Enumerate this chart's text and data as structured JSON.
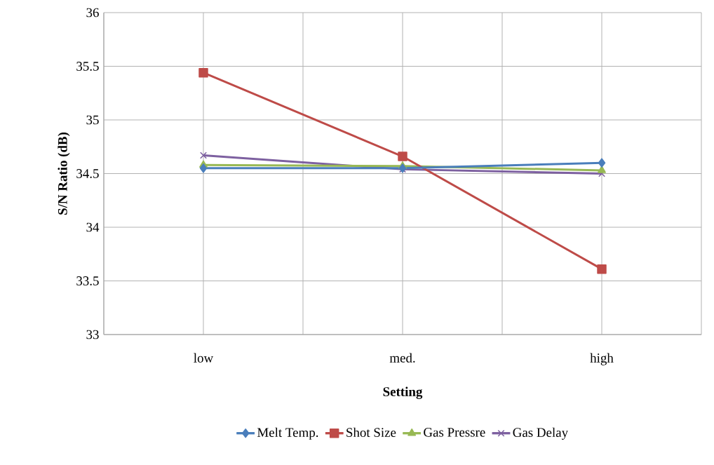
{
  "chart_data": {
    "type": "line",
    "xlabel": "Setting",
    "ylabel": "S/N Ratio (dB)",
    "categories": [
      "low",
      "med.",
      "high"
    ],
    "series": [
      {
        "name": "Melt Temp.",
        "color": "#4a7ebb",
        "marker": "diamond",
        "values": [
          34.55,
          34.55,
          34.6
        ]
      },
      {
        "name": "Shot Size",
        "color": "#be4b48",
        "marker": "square",
        "values": [
          35.44,
          34.66,
          33.61
        ]
      },
      {
        "name": "Gas Pressre",
        "color": "#98b954",
        "marker": "triangle",
        "values": [
          34.58,
          34.57,
          34.53
        ]
      },
      {
        "name": "Gas Delay",
        "color": "#7d60a0",
        "marker": "cross",
        "values": [
          34.67,
          34.54,
          34.5
        ]
      }
    ],
    "ylim": [
      33,
      36
    ],
    "yticks": [
      33,
      33.5,
      34,
      34.5,
      35,
      35.5,
      36
    ],
    "grid": true,
    "legend": "bottom",
    "line_style": "solid"
  }
}
